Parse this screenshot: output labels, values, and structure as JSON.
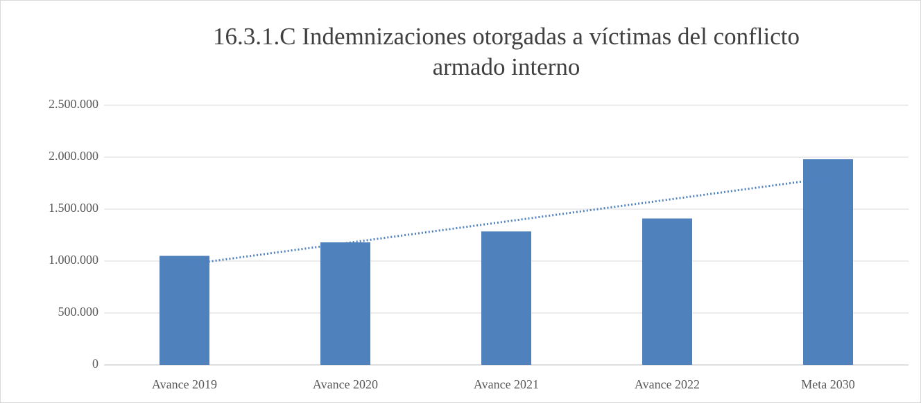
{
  "chart_data": {
    "type": "bar",
    "title": [
      "16.3.1.C Indemnizaciones otorgadas a víctimas del conflicto",
      "armado interno"
    ],
    "categories": [
      "Avance 2019",
      "Avance 2020",
      "Avance 2021",
      "Avance 2022",
      "Meta 2030"
    ],
    "values": [
      1050000,
      1180000,
      1285000,
      1410000,
      1980000
    ],
    "color": "#4f81bd",
    "trendline": "linear",
    "trendline_color": "#4f81bd",
    "ylim": [
      0,
      2500000
    ],
    "yticks": [
      0,
      {
        "value": 500000,
        "label": "500.000"
      },
      {
        "value": 1000000,
        "label": "1.000.000"
      },
      {
        "value": 1500000,
        "label": "1.500.000"
      },
      {
        "value": 2000000,
        "label": "2.000.000"
      },
      {
        "value": 2500000,
        "label": "2.500.000"
      }
    ],
    "grid": true
  }
}
